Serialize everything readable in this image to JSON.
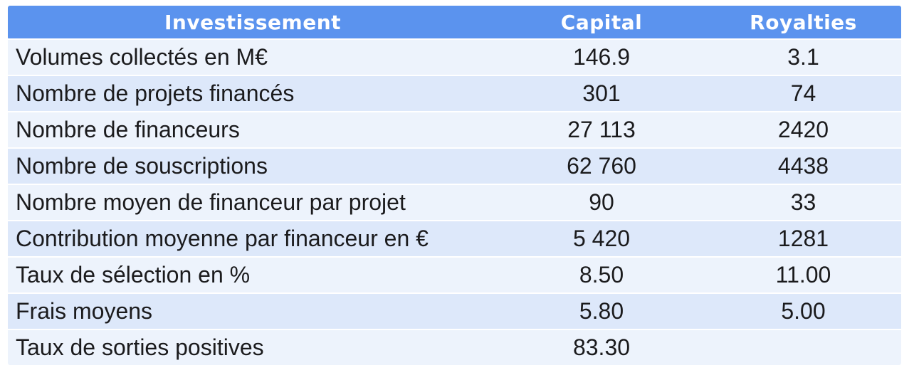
{
  "chart_data": {
    "type": "table",
    "title": "Investissement",
    "columns": [
      "Investissement",
      "Capital",
      "Royalties"
    ],
    "rows": [
      [
        "Volumes collectés en M€",
        "146.9",
        "3.1"
      ],
      [
        "Nombre de projets financés",
        "301",
        "74"
      ],
      [
        "Nombre de financeurs",
        "27 113",
        "2420"
      ],
      [
        "Nombre de souscriptions",
        "62 760",
        "4438"
      ],
      [
        "Nombre moyen de financeur par projet",
        "90",
        "33"
      ],
      [
        "Contribution moyenne par financeur en €",
        "5 420",
        "1281"
      ],
      [
        "Taux de sélection en %",
        "8.50",
        "11.00"
      ],
      [
        "Frais moyens",
        "5.80",
        "5.00"
      ],
      [
        "Taux de sorties positives",
        "83.30",
        ""
      ]
    ]
  },
  "colors": {
    "header_bg": "#5B93EE",
    "header_text": "#FFFFFF",
    "row_light": "#EDF3FC",
    "row_dark": "#DDE8FA",
    "body_text": "#1B1B1D",
    "page_bg": "#FFFFFF"
  }
}
